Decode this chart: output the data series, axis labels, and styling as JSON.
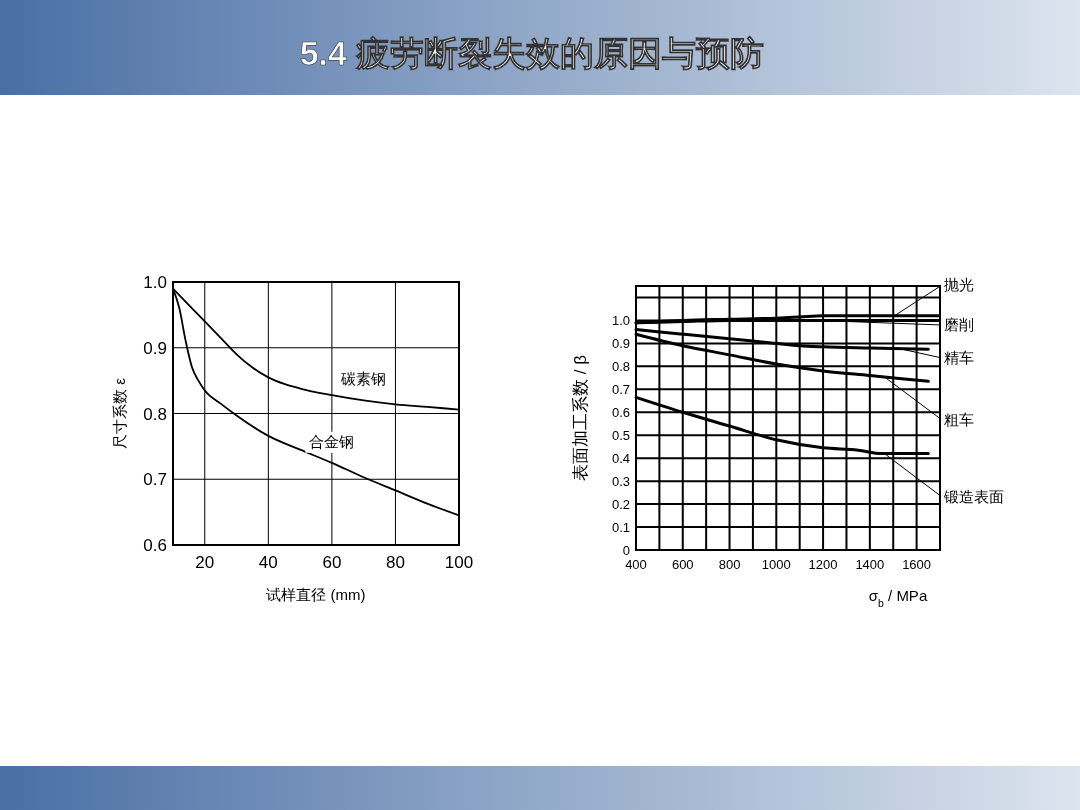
{
  "chart_data": [
    {
      "type": "line",
      "title": "5.4 疲劳断裂失效的原因与预防",
      "xlabel": "试样直径 (mm)",
      "ylabel": "尺寸系数 ε",
      "xlim": [
        10,
        100
      ],
      "xticks": [
        20,
        40,
        60,
        80,
        100
      ],
      "ylim": [
        0.6,
        1.0
      ],
      "yticks": [
        {
          "value": 0.6,
          "label": "0.6"
        },
        {
          "value": 0.7,
          "label": "0.7"
        },
        {
          "value": 0.8,
          "label": "0.8"
        },
        {
          "value": 0.9,
          "label": "0.9"
        },
        {
          "value": 1.0,
          "label": "1.0"
        }
      ],
      "grid": true,
      "marker": "none",
      "line_style": "solid",
      "series": [
        {
          "name": "碳素钢",
          "color": "#000000",
          "x": [
            10,
            15,
            20,
            25,
            30,
            35,
            40,
            45,
            50,
            60,
            70,
            80,
            90,
            100
          ],
          "values": [
            0.99,
            0.965,
            0.94,
            0.915,
            0.89,
            0.87,
            0.855,
            0.845,
            0.838,
            0.828,
            0.82,
            0.814,
            0.81,
            0.806
          ]
        },
        {
          "name": "合金钢",
          "color": "#000000",
          "x": [
            10,
            12,
            14,
            16,
            18,
            20,
            25,
            30,
            40,
            50,
            60,
            70,
            80,
            90,
            100
          ],
          "values": [
            0.99,
            0.96,
            0.91,
            0.87,
            0.85,
            0.835,
            0.815,
            0.797,
            0.766,
            0.745,
            0.725,
            0.703,
            0.683,
            0.663,
            0.645
          ]
        }
      ]
    },
    {
      "type": "line",
      "xlabel": "σ$_{b}$ / MPa",
      "ylabel": "表面加工系数 / β",
      "xlim": [
        400,
        1700
      ],
      "xticks": [
        400,
        {
          "value": 500,
          "label": null
        },
        600,
        {
          "value": 700,
          "label": null
        },
        800,
        {
          "value": 900,
          "label": null
        },
        1000,
        {
          "value": 1100,
          "label": null
        },
        1200,
        {
          "value": 1300,
          "label": null
        },
        1400,
        {
          "value": 1500,
          "label": null
        },
        1600
      ],
      "ylim": [
        0,
        1.15
      ],
      "yticks": [
        0,
        0.1,
        0.2,
        0.3,
        0.4,
        0.5,
        0.6,
        0.7,
        0.8,
        0.9,
        {
          "value": 1.0,
          "label": "1.0"
        },
        {
          "value": 1.1,
          "label": null
        }
      ],
      "grid": true,
      "marker": "none",
      "line_style": "solid",
      "series": [
        {
          "name": "抛光",
          "color": "#000000",
          "x": [
            400,
            500,
            600,
            800,
            1000,
            1100,
            1200,
            1700
          ],
          "values": [
            0.99,
            0.995,
            1.0,
            1.005,
            1.01,
            1.015,
            1.02,
            1.02
          ]
        },
        {
          "name": "磨削",
          "color": "#000000",
          "x": [
            400,
            600,
            800,
            1000,
            1700
          ],
          "values": [
            0.99,
            0.995,
            1.0,
            1.0,
            1.0
          ]
        },
        {
          "name": "精车",
          "color": "#000000",
          "x": [
            400,
            600,
            800,
            1000,
            1100,
            1200,
            1400,
            1650
          ],
          "values": [
            0.96,
            0.94,
            0.92,
            0.9,
            0.89,
            0.885,
            0.88,
            0.875
          ]
        },
        {
          "name": "粗车",
          "color": "#000000",
          "x": [
            400,
            600,
            800,
            1000,
            1200,
            1400,
            1650
          ],
          "values": [
            0.94,
            0.89,
            0.85,
            0.81,
            0.78,
            0.76,
            0.735
          ]
        },
        {
          "name": "锻造表面",
          "color": "#000000",
          "x": [
            400,
            600,
            800,
            1000,
            1200,
            1350,
            1450,
            1650
          ],
          "values": [
            0.665,
            0.6,
            0.54,
            0.48,
            0.445,
            0.435,
            0.42,
            0.42
          ]
        }
      ]
    }
  ]
}
